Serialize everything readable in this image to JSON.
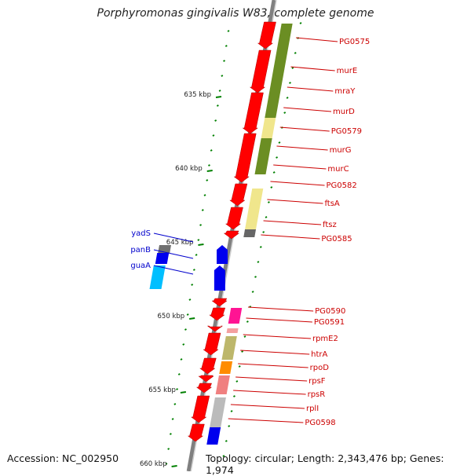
{
  "title": "Porphyromonas gingivalis W83, complete genome",
  "footer": {
    "accession": "Accession: NC_002950",
    "topology": "Topology: circular; Length: 2,343,476 bp; Genes: 1,974"
  },
  "scale_labels": [
    "635 kbp",
    "640 kbp",
    "645 kbp",
    "650 kbp",
    "655 kbp",
    "660 kbp"
  ],
  "colors": {
    "forward": "#ff0000",
    "reverse_strand": "#0000ee",
    "backbone": "#888888",
    "right_label": "#cc0000",
    "left_label": "#0000cc",
    "tick": "#008000"
  },
  "right_genes": [
    "PG0575",
    "murE",
    "mraY",
    "murD",
    "PG0579",
    "murG",
    "murC",
    "PG0582",
    "ftsA",
    "ftsz",
    "PG0585",
    "PG0590",
    "PG0591",
    "rpmE2",
    "htrA",
    "rpoD",
    "rpsF",
    "rpsR",
    "rplI",
    "PG0598"
  ],
  "left_genes": [
    "yadS",
    "panB",
    "guaA"
  ]
}
